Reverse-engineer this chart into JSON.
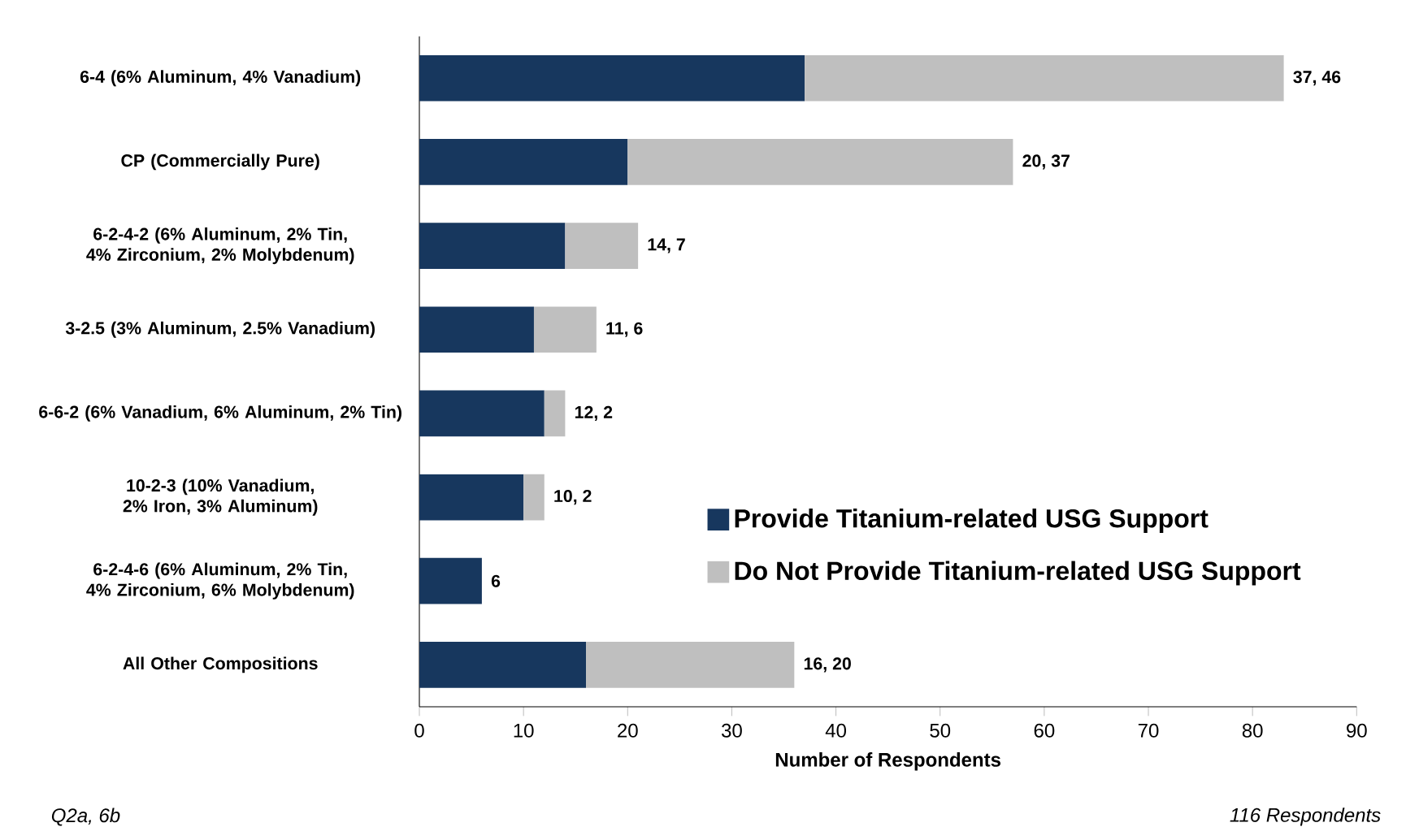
{
  "chart_data": {
    "type": "bar",
    "orientation": "horizontal",
    "stacked": true,
    "categories": [
      "6-4 (6% Aluminum, 4% Vanadium)",
      "CP (Commercially Pure)",
      "6-2-4-2 (6% Aluminum, 2% Tin, 4% Zirconium, 2% Molybdenum)",
      "3-2.5 (3% Aluminum, 2.5% Vanadium)",
      "6-6-2 (6% Vanadium, 6% Aluminum, 2% Tin)",
      "10-2-3 (10% Vanadium, 2% Iron, 3% Aluminum)",
      "6-2-4-6 (6% Aluminum, 2% Tin, 4% Zirconium, 6% Molybdenum)",
      "All Other Compositions"
    ],
    "series": [
      {
        "name": "Provide Titanium-related USG Support",
        "color": "#17375e",
        "values": [
          37,
          20,
          14,
          11,
          12,
          10,
          6,
          16
        ]
      },
      {
        "name": "Do Not Provide Titanium-related USG Support",
        "color": "#bfbfbf",
        "values": [
          46,
          37,
          7,
          6,
          2,
          2,
          null,
          20
        ]
      }
    ],
    "xlabel": "Number of Respondents",
    "xlim": [
      0,
      90
    ],
    "xticks": [
      0,
      10,
      20,
      30,
      40,
      50,
      60,
      70,
      80,
      90
    ],
    "legend": "right",
    "grid": false,
    "annotations": [
      {
        "text": "37, 46",
        "x": 83,
        "y": "6-4 (6% Aluminum, 4% Vanadium)"
      },
      {
        "text": "20, 37",
        "x": 57,
        "y": "CP (Commercially Pure)"
      },
      {
        "text": "14, 7",
        "x": 21,
        "y": "6-2-4-2 (6% Aluminum, 2% Tin, 4% Zirconium, 2% Molybdenum)"
      },
      {
        "text": "11, 6",
        "x": 17,
        "y": "3-2.5 (3% Aluminum, 2.5% Vanadium)"
      },
      {
        "text": "12, 2",
        "x": 14,
        "y": "6-6-2 (6% Vanadium, 6% Aluminum, 2% Tin)"
      },
      {
        "text": "10, 2",
        "x": 12,
        "y": "10-2-3 (10% Vanadium, 2% Iron, 3% Aluminum)"
      },
      {
        "text": "6",
        "x": 6,
        "y": "6-2-4-6 (6% Aluminum, 2% Tin, 4% Zirconium, 6% Molybdenum)"
      },
      {
        "text": "16, 20",
        "x": 36,
        "y": "All Other Compositions"
      },
      "Q2a, 6b",
      "116 Respondents"
    ]
  }
}
